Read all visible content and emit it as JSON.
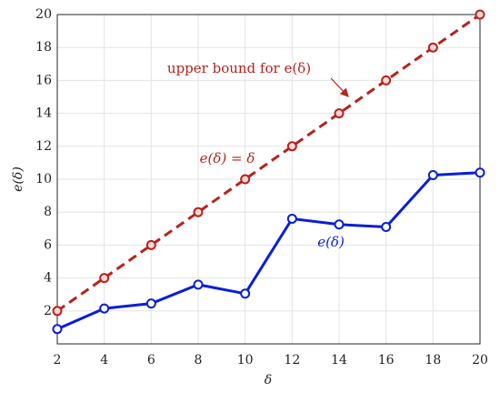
{
  "chart_data": {
    "type": "line",
    "xlabel": "δ",
    "ylabel": "e(δ)",
    "x": [
      2,
      4,
      6,
      8,
      10,
      12,
      14,
      16,
      18,
      20
    ],
    "series": [
      {
        "color": "#0a1ed6",
        "dash": false,
        "values": [
          0.9,
          2.15,
          2.45,
          3.6,
          3.05,
          7.6,
          7.25,
          7.1,
          10.25,
          10.4
        ]
      },
      {
        "color": "#b5231b",
        "dash": true,
        "values": [
          2,
          4,
          6,
          8,
          10,
          12,
          14,
          16,
          18,
          20
        ]
      }
    ],
    "annotations": [
      {
        "text": "upper bound for e(δ)",
        "color": "#b5231b"
      },
      {
        "text": "e(δ) = δ",
        "color": "#b5231b"
      },
      {
        "text": "e(δ)",
        "color": "#0a1ed6"
      }
    ],
    "xlim": [
      2,
      20
    ],
    "xticks": [
      2,
      4,
      6,
      8,
      10,
      12,
      14,
      16,
      18,
      20
    ],
    "ylim": [
      0,
      20
    ],
    "yticks": [
      2,
      4,
      6,
      8,
      10,
      12,
      14,
      16,
      18,
      20
    ],
    "grid": true
  }
}
